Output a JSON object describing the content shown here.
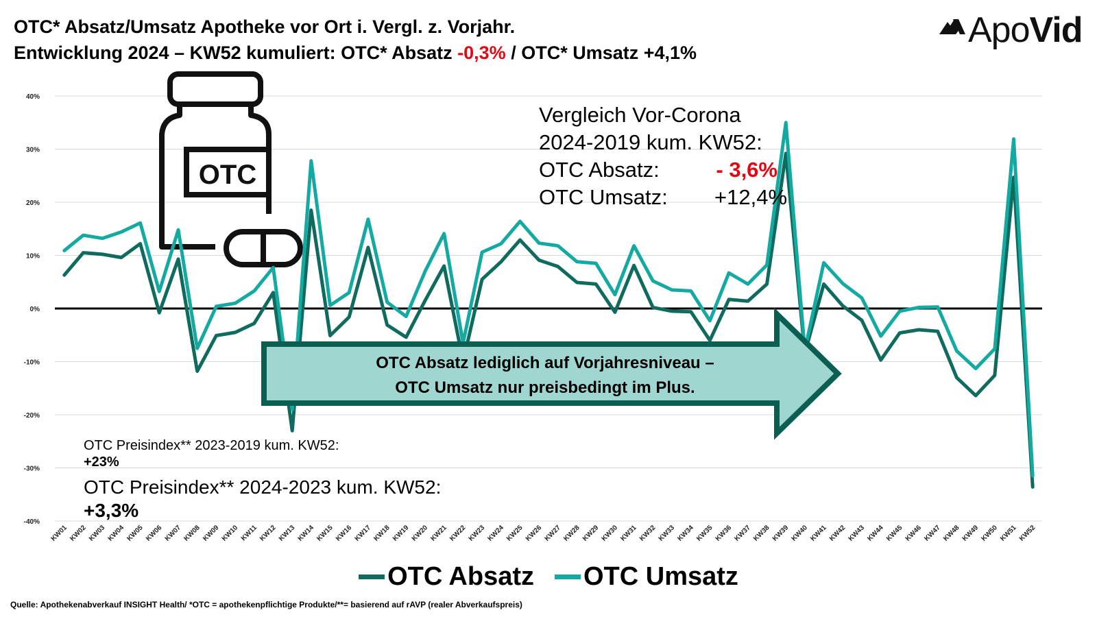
{
  "header": {
    "line1": "OTC* Absatz/Umsatz Apotheke vor Ort i. Vergl. z. Vorjahr.",
    "line2_a": "Entwicklung 2024 – KW52 kumuliert: OTC* Absatz ",
    "line2_red": "-0,3%",
    "line2_b": " / OTC* Umsatz +4,1%"
  },
  "logo": {
    "text_light": "Apo",
    "text_bold": "Vid"
  },
  "comparison": {
    "line1": "Vergleich Vor-Corona",
    "line2": "2024-2019 kum. KW52:",
    "absatz_label": "OTC Absatz:",
    "absatz_value": "- 3,6%",
    "umsatz_label": "OTC Umsatz:",
    "umsatz_value": "+12,4%"
  },
  "price_index": {
    "line1": "OTC Preisindex** 2023-2019 kum. KW52:",
    "value1": "+23%",
    "line2": "OTC Preisindex** 2024-2023 kum. KW52:",
    "value2": "+3,3%"
  },
  "bottle": {
    "label": "OTC"
  },
  "callout": {
    "line1": "OTC Absatz lediglich auf Vorjahresniveau –",
    "line2": "OTC Umsatz nur preisbedingt im Plus."
  },
  "legend": {
    "absatz": "OTC Absatz",
    "umsatz": "OTC Umsatz"
  },
  "source": "Quelle: Apothekenabverkauf INSIGHT Health/ *OTC = apothekenpflichtige Produkte/**= basierend auf rAVP (realer Abverkaufspreis)",
  "colors": {
    "absatz": "#0e6b5e",
    "umsatz": "#14aaa2",
    "accent_red": "#e30613",
    "arrow_fill": "#9fd6cf",
    "arrow_stroke": "#0a5e52"
  },
  "chart_data": {
    "type": "line",
    "ylim": [
      -40,
      40
    ],
    "yticks": [
      40,
      30,
      20,
      10,
      0,
      -10,
      -20,
      -30,
      -40
    ],
    "ytick_labels": [
      "40%",
      "30%",
      "20%",
      "10%",
      "0%",
      "-10%",
      "-20%",
      "-30%",
      "-40%"
    ],
    "grid": true,
    "legend_position": "bottom",
    "categories": [
      "KW01",
      "KW02",
      "KW03",
      "KW04",
      "KW05",
      "KW06",
      "KW07",
      "KW08",
      "KW09",
      "KW10",
      "KW11",
      "KW12",
      "KW13",
      "KW14",
      "KW15",
      "KW16",
      "KW17",
      "KW18",
      "KW19",
      "KW20",
      "KW21",
      "KW22",
      "KW23",
      "KW24",
      "KW25",
      "KW26",
      "KW27",
      "KW28",
      "KW29",
      "KW30",
      "KW31",
      "KW32",
      "KW33",
      "KW34",
      "KW35",
      "KW36",
      "KW37",
      "KW38",
      "KW39",
      "KW40",
      "KW41",
      "KW42",
      "KW43",
      "KW44",
      "KW45",
      "KW46",
      "KW47",
      "KW48",
      "KW49",
      "KW50",
      "KW51",
      "KW52"
    ],
    "series": [
      {
        "name": "OTC Absatz",
        "color": "#0e6b5e",
        "values": [
          6.3,
          10.5,
          10.2,
          9.6,
          12.2,
          -0.8,
          9.3,
          -11.8,
          -5.1,
          -4.5,
          -2.8,
          3.0,
          -23.0,
          18.5,
          -5.1,
          -1.6,
          11.5,
          -3.1,
          -5.4,
          1.5,
          8.0,
          -10.0,
          5.5,
          8.8,
          12.9,
          9.1,
          7.9,
          4.9,
          4.6,
          -0.7,
          8.1,
          0.2,
          -0.5,
          -0.6,
          -6.0,
          1.7,
          1.4,
          4.6,
          29.2,
          -8.5,
          4.6,
          0.5,
          -2.2,
          -9.7,
          -4.6,
          -4.0,
          -4.3,
          -13.0,
          -16.4,
          -12.6,
          24.7,
          -33.6
        ]
      },
      {
        "name": "OTC Umsatz",
        "color": "#14aaa2",
        "values": [
          10.9,
          13.8,
          13.2,
          14.4,
          16.1,
          3.2,
          14.8,
          -7.5,
          0.4,
          1.0,
          3.3,
          7.7,
          -19.0,
          27.8,
          0.6,
          3.0,
          16.8,
          1.2,
          -1.5,
          7.0,
          14.1,
          -6.5,
          10.6,
          12.2,
          16.4,
          12.3,
          11.8,
          8.8,
          8.5,
          2.6,
          11.8,
          5.2,
          3.5,
          3.3,
          -2.3,
          6.7,
          4.6,
          8.2,
          35.0,
          -7.9,
          8.6,
          4.7,
          2.0,
          -5.2,
          -0.5,
          0.2,
          0.3,
          -8.0,
          -11.3,
          -7.6,
          31.9,
          -31.5
        ]
      }
    ]
  }
}
